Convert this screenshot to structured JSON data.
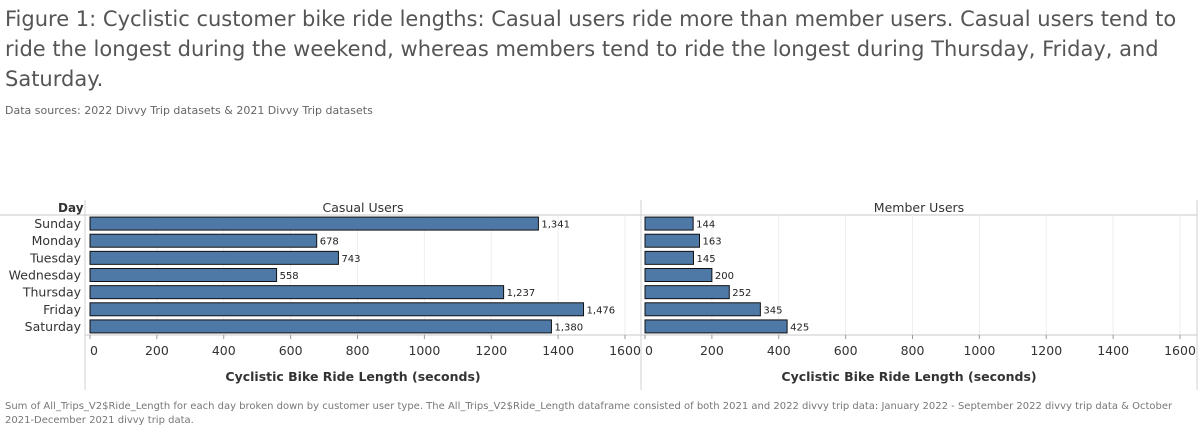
{
  "title": "Figure 1: Cyclistic customer bike ride lengths: Casual users ride more than member users. Casual users tend to ride the longest during the weekend, whereas members tend to ride the longest during Thursday, Friday, and Saturday.",
  "subtitle": "Data sources: 2022 Divvy Trip datasets & 2021 Divvy Trip datasets",
  "footnote": "Sum of All_Trips_V2$Ride_Length for each day broken down by customer user type. The All_Trips_V2$Ride_Length dataframe consisted of both 2021 and 2022 divvy trip data: January 2022 - September 2022 divvy trip data & October 2021-December 2021 divvy trip data.",
  "chart_data": {
    "type": "bar",
    "orientation": "horizontal",
    "row_header": "Day",
    "categories": [
      "Sunday",
      "Monday",
      "Tuesday",
      "Wednesday",
      "Thursday",
      "Friday",
      "Saturday"
    ],
    "xlabel": "Cyclistic Bike Ride Length (seconds)",
    "xlim": [
      0,
      1600
    ],
    "xticks": [
      0,
      200,
      400,
      600,
      800,
      1000,
      1200,
      1400,
      1600
    ],
    "grid": true,
    "bar_color": "#4e79a7",
    "panels": [
      {
        "name": "Casual Users",
        "values": [
          1341,
          678,
          743,
          558,
          1237,
          1476,
          1380
        ],
        "labels": [
          "1,341",
          "678",
          "743",
          "558",
          "1,237",
          "1,476",
          "1,380"
        ]
      },
      {
        "name": "Member Users",
        "values": [
          144,
          163,
          145,
          200,
          252,
          345,
          425
        ],
        "labels": [
          "144",
          "163",
          "145",
          "200",
          "252",
          "345",
          "425"
        ]
      }
    ]
  }
}
